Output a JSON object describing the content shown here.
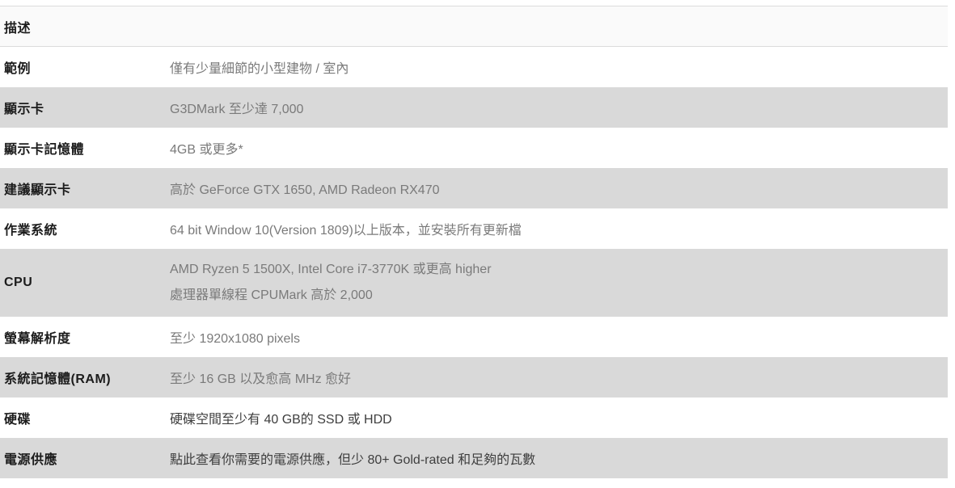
{
  "table": {
    "header": {
      "label": "描述"
    },
    "rows": [
      {
        "label": "範例",
        "value": "僅有少量細節的小型建物 / 室內"
      },
      {
        "label": "顯示卡",
        "value": "G3DMark 至少達 7,000"
      },
      {
        "label": "顯示卡記憶體",
        "value": "4GB 或更多*"
      },
      {
        "label": "建議顯示卡",
        "value": "高於 GeForce GTX 1650, AMD Radeon RX470"
      },
      {
        "label": "作業系統",
        "value": "64 bit Window 10(Version 1809)以上版本，並安裝所有更新檔"
      },
      {
        "label": "CPU",
        "value": "AMD Ryzen 5 1500X, Intel Core i7-3770K 或更高 higher",
        "value2": "處理器單線程 CPUMark 高於 2,000"
      },
      {
        "label": "螢幕解析度",
        "value": "至少 1920x1080 pixels"
      },
      {
        "label": "系統記憶體(RAM)",
        "value": "至少 16 GB 以及愈高 MHz 愈好"
      },
      {
        "label": "硬碟",
        "value": "硬碟空間至少有 40 GB的 SSD 或 HDD"
      },
      {
        "label": "電源供應",
        "value": "點此查看你需要的電源供應，但少 80+ Gold-rated 和足夠的瓦數"
      }
    ]
  },
  "colors": {
    "row_shade": "#d9d9d9",
    "header_bg": "#fafafa",
    "border": "#dcdcdc",
    "label_text": "#1c1c1c",
    "value_muted": "#7a7a7a",
    "value_dark": "#3e3e3e",
    "page_bg": "#ffffff"
  }
}
